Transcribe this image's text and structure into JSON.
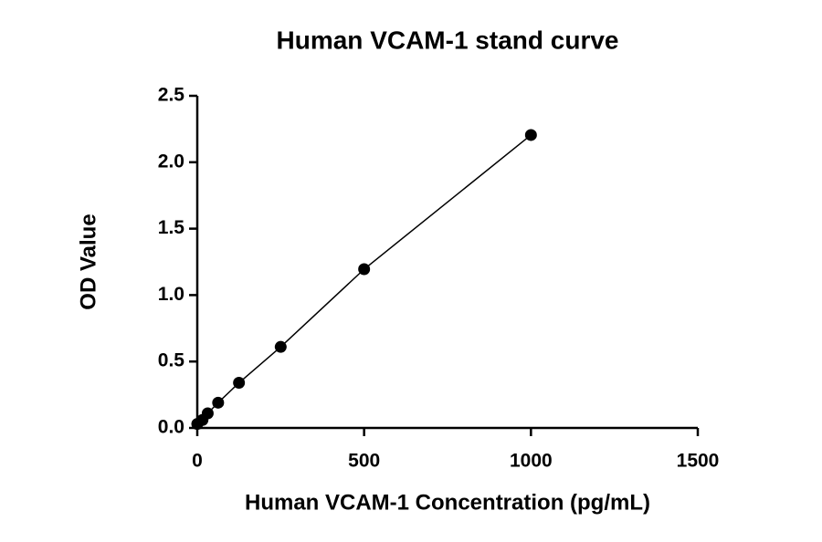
{
  "chart_data": {
    "type": "scatter",
    "title": "Human VCAM-1 stand curve",
    "x_label": "Human VCAM-1 Concentration (pg/mL)",
    "y_label": "OD Value",
    "x": [
      0,
      15.625,
      31.25,
      62.5,
      125,
      250,
      500,
      1000
    ],
    "series": [
      {
        "color": "#000000",
        "values": [
          0.03,
          0.06,
          0.11,
          0.19,
          0.34,
          0.61,
          1.195,
          2.205
        ]
      }
    ],
    "xlim": [
      0,
      1500
    ],
    "xticks": [
      0,
      500,
      1000,
      1500
    ],
    "ylim": [
      0,
      2.5
    ],
    "yticks": [
      {
        "value": 0,
        "label": "0.0"
      },
      0.5,
      {
        "value": 1,
        "label": "1.0"
      },
      1.5,
      {
        "value": 2,
        "label": "2.0"
      },
      2.5
    ]
  }
}
